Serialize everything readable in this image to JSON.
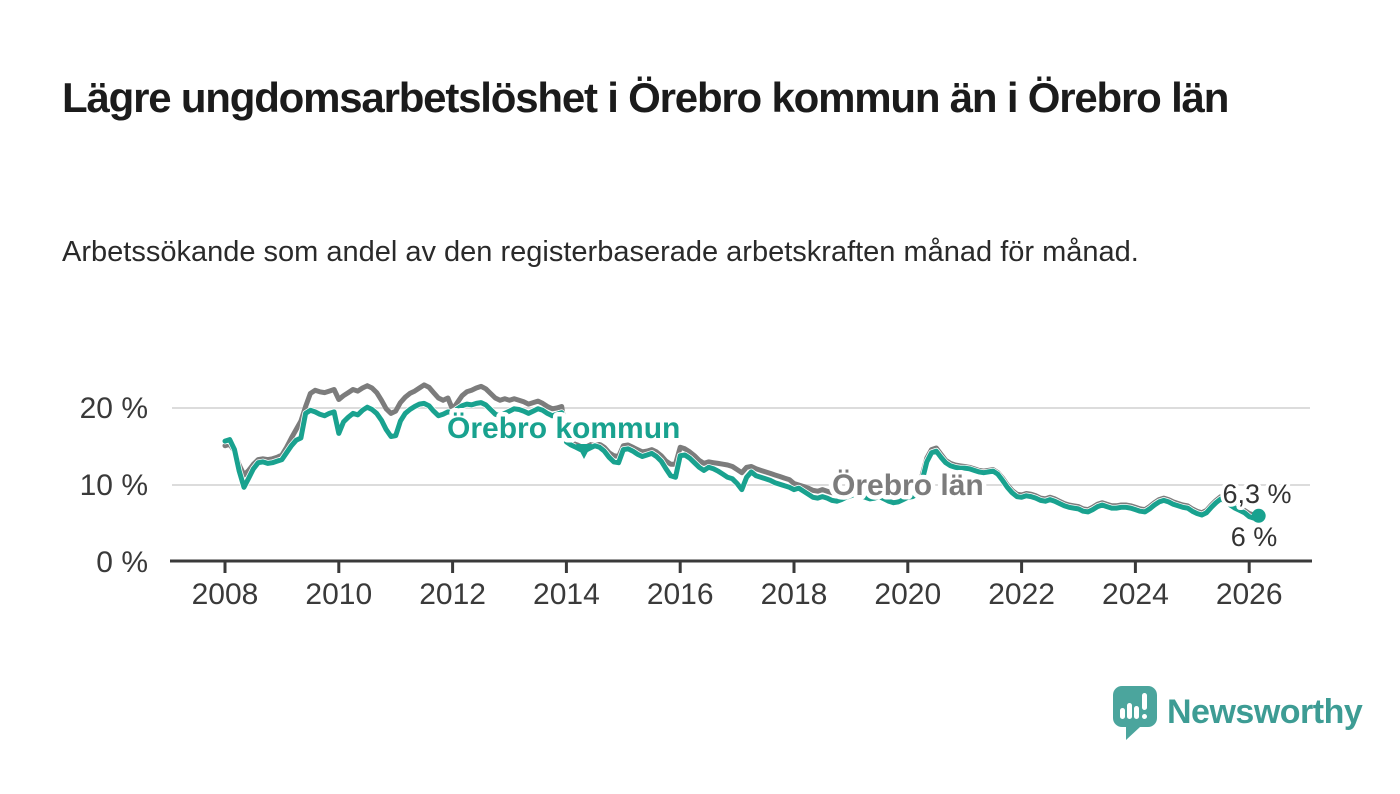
{
  "title": "Lägre ungdomsarbetslöshet i Örebro kommun än i Örebro län",
  "subtitle": "Arbetssökande som andel av den registerbaserade arbetskraften månad för månad.",
  "logo": {
    "text": "Newsworthy",
    "icon": "speech-bubble-bar-chart",
    "color": "#4ba59d",
    "text_color": "#3d9c94"
  },
  "chart_data": {
    "type": "line",
    "title": "Lägre ungdomsarbetslöshet i Örebro kommun än i Örebro län",
    "subtitle": "Arbetssökande som andel av den registerbaserade arbetskraften månad för månad.",
    "x_unit": "month",
    "x_start": 2008.0,
    "x_end": 2026.1667,
    "ylim": [
      0,
      25
    ],
    "grid": "horizontal-only",
    "grid_color": "#dcdcdc",
    "axis_color": "#3a3a3a",
    "x_axis": {
      "ticks": [
        2008,
        2010,
        2012,
        2014,
        2016,
        2018,
        2020,
        2022,
        2024,
        2026
      ]
    },
    "y_axis": {
      "gridlines": [
        {
          "value": 0,
          "label": "0 %"
        },
        {
          "value": 10,
          "label": "10 %"
        },
        {
          "value": 20,
          "label": "20 %"
        }
      ]
    },
    "legend_position": "inline-labels-on-chart",
    "series": [
      {
        "name": "Örebro kommun",
        "color": "#19a28f",
        "values": [
          15.7,
          15.9,
          14.6,
          11.8,
          9.7,
          10.9,
          12.1,
          12.9,
          13.0,
          12.8,
          12.9,
          13.1,
          13.3,
          14.2,
          15.1,
          15.8,
          16.1,
          19.3,
          19.7,
          19.5,
          19.2,
          19.0,
          19.3,
          19.5,
          16.7,
          18.2,
          18.8,
          19.3,
          19.1,
          19.7,
          20.1,
          19.8,
          19.3,
          18.4,
          17.2,
          16.3,
          16.4,
          18.3,
          19.3,
          19.8,
          20.2,
          20.5,
          20.6,
          20.3,
          19.6,
          19.0,
          19.2,
          19.5,
          19.4,
          19.9,
          20.3,
          20.5,
          20.4,
          20.6,
          20.7,
          20.4,
          19.8,
          19.2,
          19.0,
          19.3,
          19.6,
          19.9,
          19.8,
          19.6,
          19.3,
          19.6,
          19.9,
          19.7,
          19.3,
          19.0,
          19.2,
          19.4,
          15.6,
          15.2,
          14.9,
          14.6,
          14.5,
          14.8,
          15.1,
          14.9,
          14.4,
          13.6,
          13.0,
          12.9,
          14.6,
          14.7,
          14.4,
          14.0,
          13.7,
          13.9,
          14.1,
          13.7,
          13.1,
          12.1,
          11.2,
          11.0,
          13.8,
          13.9,
          13.5,
          12.9,
          12.3,
          11.9,
          12.3,
          12.1,
          11.8,
          11.4,
          11.0,
          10.8,
          10.2,
          9.4,
          11.0,
          11.7,
          11.2,
          11.0,
          10.8,
          10.6,
          10.3,
          10.1,
          9.9,
          9.7,
          9.4,
          9.6,
          9.2,
          8.8,
          8.4,
          8.3,
          8.5,
          8.3,
          8.0,
          7.9,
          8.1,
          8.4,
          8.6,
          8.8,
          8.6,
          8.4,
          8.2,
          8.3,
          8.5,
          8.2,
          7.9,
          7.7,
          7.8,
          8.1,
          8.4,
          8.5,
          8.8,
          10.5,
          13.0,
          14.2,
          14.4,
          13.6,
          12.9,
          12.5,
          12.3,
          12.2,
          12.2,
          12.1,
          11.9,
          11.7,
          11.6,
          11.7,
          11.8,
          11.4,
          10.6,
          9.7,
          9.0,
          8.5,
          8.4,
          8.6,
          8.5,
          8.3,
          8.0,
          7.9,
          8.1,
          7.9,
          7.6,
          7.3,
          7.1,
          7.0,
          6.9,
          6.6,
          6.5,
          6.8,
          7.2,
          7.4,
          7.2,
          7.0,
          7.0,
          7.1,
          7.1,
          7.0,
          6.8,
          6.6,
          6.5,
          6.9,
          7.4,
          7.8,
          8.0,
          7.8,
          7.5,
          7.3,
          7.1,
          7.0,
          6.6,
          6.3,
          6.1,
          6.4,
          7.1,
          7.7,
          8.2,
          7.9,
          7.4,
          7.0,
          6.7,
          6.4,
          5.9,
          5.7,
          6.0
        ]
      },
      {
        "name": "Örebro län",
        "color": "#7c7c7c",
        "values": [
          15.1,
          15.3,
          14.4,
          12.6,
          11.3,
          11.9,
          12.7,
          13.3,
          13.4,
          13.3,
          13.4,
          13.6,
          13.9,
          14.9,
          16.1,
          17.2,
          18.3,
          20.2,
          21.9,
          22.3,
          22.1,
          22.0,
          22.2,
          22.4,
          21.1,
          21.6,
          22.0,
          22.4,
          22.2,
          22.6,
          22.9,
          22.6,
          22.0,
          21.0,
          19.9,
          19.3,
          19.6,
          20.7,
          21.4,
          21.9,
          22.2,
          22.6,
          23.0,
          22.7,
          22.0,
          21.3,
          21.0,
          21.3,
          19.8,
          20.7,
          21.6,
          22.1,
          22.3,
          22.6,
          22.8,
          22.5,
          21.9,
          21.3,
          21.0,
          21.2,
          21.0,
          21.2,
          21.0,
          20.8,
          20.5,
          20.7,
          20.9,
          20.6,
          20.2,
          19.9,
          20.0,
          20.2,
          16.0,
          15.6,
          15.3,
          15.0,
          14.9,
          15.2,
          15.5,
          15.3,
          14.9,
          14.2,
          13.8,
          13.7,
          15.1,
          15.2,
          14.9,
          14.6,
          14.3,
          14.4,
          14.6,
          14.3,
          13.8,
          13.1,
          12.7,
          12.7,
          14.9,
          14.7,
          14.3,
          13.8,
          13.2,
          12.8,
          13.0,
          12.9,
          12.8,
          12.7,
          12.6,
          12.4,
          12.0,
          11.6,
          12.3,
          12.4,
          12.1,
          11.9,
          11.7,
          11.5,
          11.3,
          11.1,
          10.9,
          10.7,
          10.2,
          10.0,
          9.8,
          9.6,
          9.3,
          9.2,
          9.4,
          9.2,
          9.0,
          8.9,
          9.1,
          9.4,
          9.6,
          9.7,
          9.5,
          9.3,
          9.1,
          9.2,
          9.4,
          9.1,
          8.9,
          8.7,
          8.8,
          9.0,
          9.2,
          9.3,
          9.6,
          11.2,
          13.5,
          14.6,
          14.8,
          14.0,
          13.2,
          12.8,
          12.6,
          12.5,
          12.4,
          12.3,
          12.1,
          11.9,
          11.8,
          11.9,
          12.0,
          11.6,
          10.9,
          10.0,
          9.3,
          8.8,
          8.7,
          8.9,
          8.8,
          8.6,
          8.3,
          8.2,
          8.4,
          8.2,
          7.9,
          7.6,
          7.4,
          7.3,
          7.2,
          6.9,
          6.8,
          7.1,
          7.5,
          7.7,
          7.5,
          7.3,
          7.3,
          7.4,
          7.4,
          7.3,
          7.1,
          6.9,
          6.8,
          7.2,
          7.7,
          8.1,
          8.3,
          8.1,
          7.8,
          7.6,
          7.4,
          7.3,
          6.9,
          6.6,
          6.4,
          6.7,
          7.4,
          8.0,
          8.5,
          8.2,
          7.7,
          7.3,
          7.0,
          6.7,
          6.3,
          6.1,
          6.3
        ]
      }
    ],
    "annotations": [
      {
        "text": "Örebro kommun",
        "series": "Örebro kommun",
        "marker": "triangle-down"
      },
      {
        "text": "Örebro län",
        "series": "Örebro län"
      }
    ],
    "end_labels": [
      {
        "text": "6,3 %",
        "value": 6.3,
        "series": "Örebro län"
      },
      {
        "text": "6 %",
        "value": 6.0,
        "series": "Örebro kommun"
      }
    ]
  }
}
